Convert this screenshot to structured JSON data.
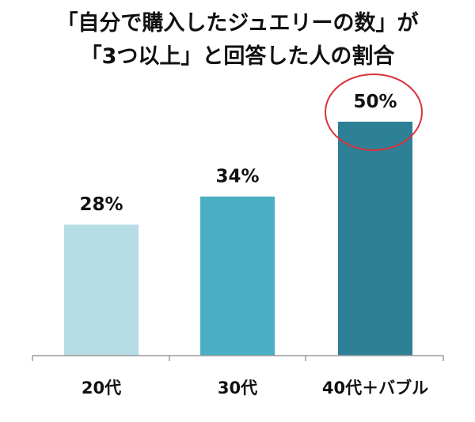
{
  "chart_data": {
    "type": "bar",
    "title_lines": [
      "「自分で購入したジュエリーの数」が",
      "「3つ以上」と回答した人の割合"
    ],
    "categories": [
      "20代",
      "30代",
      "40代＋バブル"
    ],
    "values": [
      28,
      34,
      50
    ],
    "data_labels": [
      "28%",
      "34%",
      "50%"
    ],
    "ylim": [
      0,
      50
    ],
    "grid": false,
    "legend": "none",
    "highlight_index": 2,
    "colors": {
      "bars": [
        "#b6dce6",
        "#4aaec4",
        "#2e8096"
      ],
      "axis": "#9a9a9a",
      "highlight_ring": "#d9323b",
      "text": "#111111"
    }
  }
}
